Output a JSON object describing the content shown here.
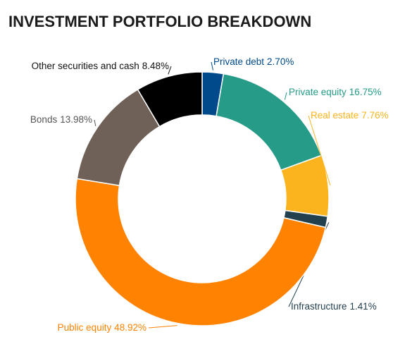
{
  "chart_data": {
    "type": "donut",
    "title": "INVESTMENT PORTFOLIO BREAKDOWN",
    "categories": [
      "Private debt",
      "Private equity",
      "Real estate",
      "Infrastructure",
      "Public equity",
      "Bonds",
      "Other securities and cash"
    ],
    "values": [
      2.7,
      16.75,
      7.76,
      1.41,
      48.92,
      13.98,
      8.48
    ],
    "value_labels": [
      "2.70%",
      "16.75%",
      "7.76%",
      "1.41%",
      "48.92%",
      "13.98%",
      "8.48%"
    ],
    "colors": [
      "#004a8c",
      "#259b88",
      "#fbb41e",
      "#23404f",
      "#ff8200",
      "#6f6157",
      "#000000"
    ]
  }
}
